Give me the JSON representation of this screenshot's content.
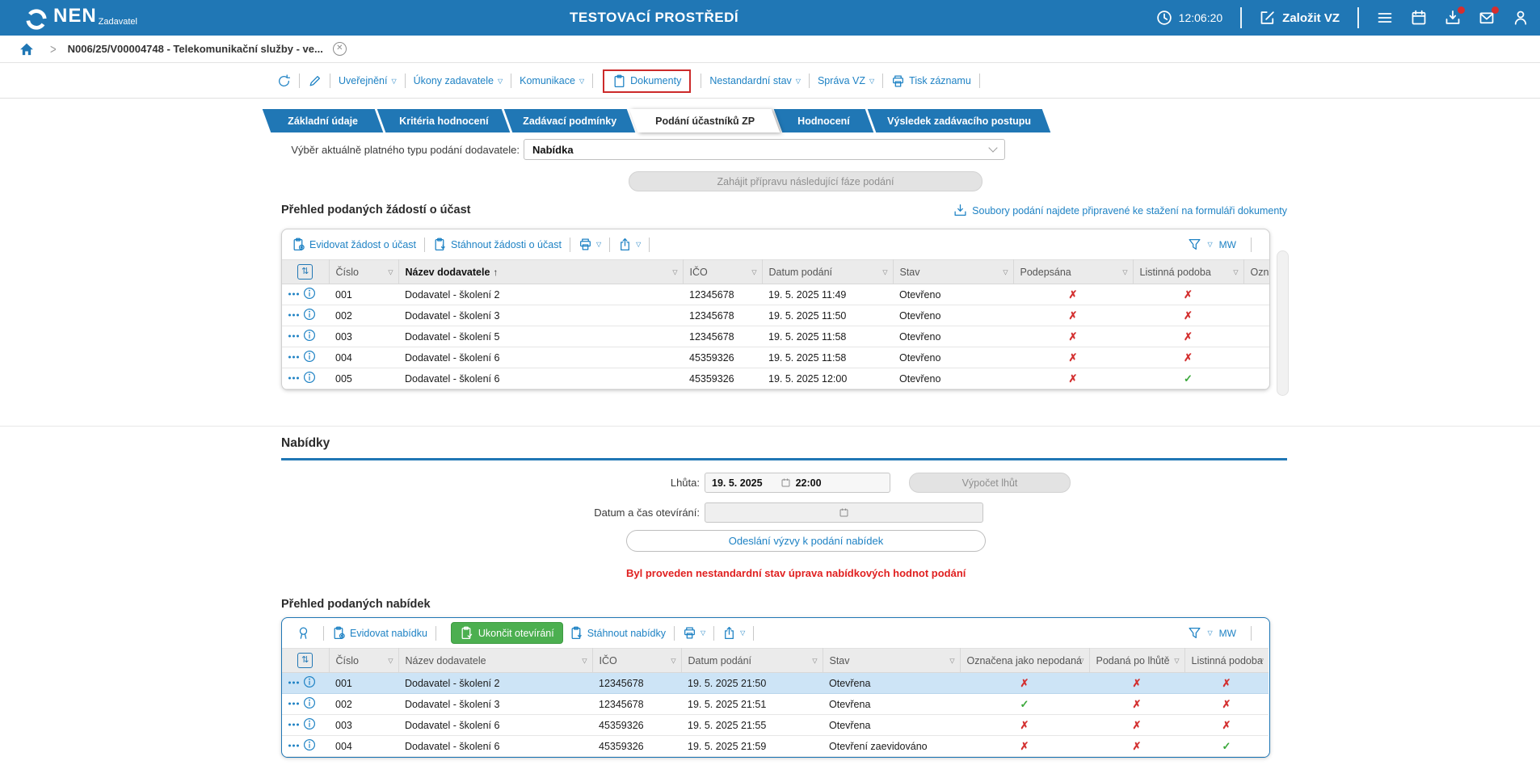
{
  "header": {
    "brand": "NEN",
    "brand_sub": "Zadavatel",
    "env_title": "TESTOVACÍ PROSTŘEDÍ",
    "time": "12:06:20",
    "create_button": "Založit VZ"
  },
  "breadcrumb": {
    "item": "N006/25/V00004748 - Telekomunikační služby - ve..."
  },
  "toolbar": {
    "uverejneni": "Uveřejnění",
    "ukony": "Úkony zadavatele",
    "komunikace": "Komunikace",
    "dokumenty": "Dokumenty",
    "nestandardni": "Nestandardní stav",
    "sprava": "Správa VZ",
    "tisk": "Tisk záznamu"
  },
  "tabs": {
    "items": [
      "Základní údaje",
      "Kritéria hodnocení",
      "Zadávací podmínky",
      "Podání účastníků ZP",
      "Hodnocení",
      "Výsledek zadávacího postupu"
    ]
  },
  "submission_filter": {
    "label": "Výběr aktuálně platného typu podání dodavatele:",
    "value": "Nabídka"
  },
  "phase_button_label": "Zahájit přípravu následující fáze podání",
  "applications": {
    "title": "Přehled podaných žádostí o účast",
    "download_hint": "Soubory podání najdete připravené ke stažení na formuláři dokumenty",
    "register_label": "Evidovat žádost o účast",
    "download_label": "Stáhnout žádosti o účast",
    "mw": "MW",
    "columns": [
      "Číslo",
      "Název dodavatele",
      "IČO",
      "Datum podání",
      "Stav",
      "Podepsána",
      "Listinná podoba",
      "Označe"
    ],
    "rows": [
      {
        "cislo": "001",
        "nazev": "Dodavatel - školení 2",
        "ico": "12345678",
        "datum": "19. 5. 2025 11:49",
        "stav": "Otevřeno",
        "marks": [
          false,
          false
        ]
      },
      {
        "cislo": "002",
        "nazev": "Dodavatel - školení 3",
        "ico": "12345678",
        "datum": "19. 5. 2025 11:50",
        "stav": "Otevřeno",
        "marks": [
          false,
          false
        ]
      },
      {
        "cislo": "003",
        "nazev": "Dodavatel - školení 5",
        "ico": "12345678",
        "datum": "19. 5. 2025 11:58",
        "stav": "Otevřeno",
        "marks": [
          false,
          false
        ]
      },
      {
        "cislo": "004",
        "nazev": "Dodavatel - školení 6",
        "ico": "45359326",
        "datum": "19. 5. 2025 11:58",
        "stav": "Otevřeno",
        "marks": [
          false,
          false
        ]
      },
      {
        "cislo": "005",
        "nazev": "Dodavatel - školení 6",
        "ico": "45359326",
        "datum": "19. 5. 2025 12:00",
        "stav": "Otevřeno",
        "marks": [
          false,
          true
        ]
      }
    ]
  },
  "offers_section": {
    "title": "Nabídky",
    "deadline_label": "Lhůta:",
    "deadline_date": "19. 5. 2025",
    "deadline_time": "22:00",
    "calc_button": "Výpočet lhůt",
    "opening_label": "Datum a čas otevírání:",
    "send_button": "Odeslání výzvy k podání nabídek",
    "warning": "Byl proveden nestandardní stav úprava nabídkových hodnot podání"
  },
  "offers": {
    "title": "Přehled podaných nabídek",
    "register_label": "Evidovat nabídku",
    "finish_label": "Ukončit otevírání",
    "download_label": "Stáhnout nabídky",
    "mw": "MW",
    "columns": [
      "Číslo",
      "Název dodavatele",
      "IČO",
      "Datum podání",
      "Stav",
      "Označena jako nepodaná",
      "Podaná po lhůtě",
      "Listinná podoba"
    ],
    "rows": [
      {
        "cislo": "001",
        "nazev": "Dodavatel - školení 2",
        "ico": "12345678",
        "datum": "19. 5. 2025 21:50",
        "stav": "Otevřena",
        "marks": [
          false,
          false,
          false
        ],
        "selected": true
      },
      {
        "cislo": "002",
        "nazev": "Dodavatel - školení 3",
        "ico": "12345678",
        "datum": "19. 5. 2025 21:51",
        "stav": "Otevřena",
        "marks": [
          true,
          false,
          false
        ]
      },
      {
        "cislo": "003",
        "nazev": "Dodavatel - školení 6",
        "ico": "45359326",
        "datum": "19. 5. 2025 21:55",
        "stav": "Otevřena",
        "marks": [
          false,
          false,
          false
        ]
      },
      {
        "cislo": "004",
        "nazev": "Dodavatel - školení 6",
        "ico": "45359326",
        "datum": "19. 5. 2025 21:59",
        "stav": "Otevření zaevidováno",
        "marks": [
          false,
          false,
          true
        ]
      }
    ]
  },
  "colors": {
    "primary": "#2077B5",
    "link": "#1E82C4",
    "success": "#3AA83A",
    "danger": "#D32F2F",
    "selected_row": "#CDE4F6",
    "highlight_box": "#CC2A2A"
  }
}
